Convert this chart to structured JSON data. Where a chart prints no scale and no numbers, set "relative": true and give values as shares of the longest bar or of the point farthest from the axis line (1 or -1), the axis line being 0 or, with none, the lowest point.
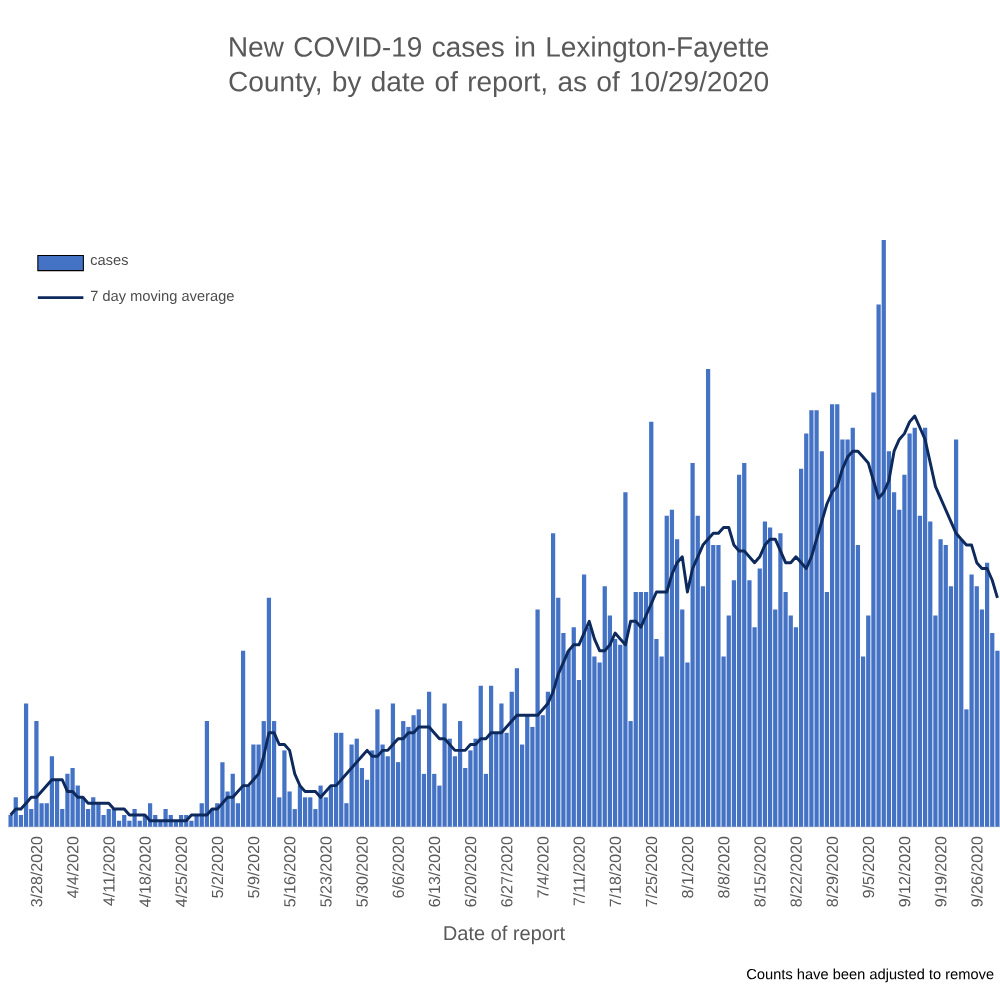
{
  "chart_data": {
    "type": "bar",
    "title": "New COVID-19 cases in Lexington-Fayette County, by date of report, as of 10/29/2020",
    "xlabel": "Date of report",
    "annotations": [
      "Counts have been adjusted to remove"
    ],
    "relative": true,
    "legend": "top left",
    "categories": [
      null,
      null,
      null,
      null,
      null,
      "3/28/2020",
      null,
      null,
      null,
      null,
      null,
      null,
      "4/4/2020",
      null,
      null,
      null,
      null,
      null,
      null,
      "4/11/2020",
      null,
      null,
      null,
      null,
      null,
      null,
      "4/18/2020",
      null,
      null,
      null,
      null,
      null,
      null,
      "4/25/2020",
      null,
      null,
      null,
      null,
      null,
      null,
      "5/2/2020",
      null,
      null,
      null,
      null,
      null,
      null,
      "5/9/2020",
      null,
      null,
      null,
      null,
      null,
      null,
      "5/16/2020",
      null,
      null,
      null,
      null,
      null,
      null,
      "5/23/2020",
      null,
      null,
      null,
      null,
      null,
      null,
      "5/30/2020",
      null,
      null,
      null,
      null,
      null,
      null,
      "6/6/2020",
      null,
      null,
      null,
      null,
      null,
      null,
      "6/13/2020",
      null,
      null,
      null,
      null,
      null,
      null,
      "6/20/2020",
      null,
      null,
      null,
      null,
      null,
      null,
      "6/27/2020",
      null,
      null,
      null,
      null,
      null,
      null,
      "7/4/2020",
      null,
      null,
      null,
      null,
      null,
      null,
      "7/11/2020",
      null,
      null,
      null,
      null,
      null,
      null,
      "7/18/2020",
      null,
      null,
      null,
      null,
      null,
      null,
      "7/25/2020",
      null,
      null,
      null,
      null,
      null,
      null,
      "8/1/2020",
      null,
      null,
      null,
      null,
      null,
      null,
      "8/8/2020",
      null,
      null,
      null,
      null,
      null,
      null,
      "8/15/2020",
      null,
      null,
      null,
      null,
      null,
      null,
      "8/22/2020",
      null,
      null,
      null,
      null,
      null,
      null,
      "8/29/2020",
      null,
      null,
      null,
      null,
      null,
      null,
      "9/5/2020",
      null,
      null,
      null,
      null,
      null,
      null,
      "9/12/2020",
      null,
      null,
      null,
      null,
      null,
      null,
      "9/19/2020",
      null,
      null,
      null,
      null,
      null,
      null,
      "9/26/2020",
      null,
      null,
      null,
      null
    ],
    "series": [
      {
        "name": "cases",
        "color": "#4472c4",
        "values": [
          0.02,
          0.05,
          0.02,
          0.21,
          0.03,
          0.18,
          0.04,
          0.04,
          0.12,
          0.08,
          0.03,
          0.09,
          0.1,
          0.07,
          0.05,
          0.03,
          0.05,
          0.04,
          0.02,
          0.03,
          0.03,
          0.01,
          0.02,
          0.01,
          0.03,
          0.01,
          0.02,
          0.04,
          0.02,
          0.01,
          0.03,
          0.02,
          0.01,
          0.02,
          0.02,
          0.01,
          0.02,
          0.04,
          0.18,
          0.03,
          0.04,
          0.11,
          0.06,
          0.09,
          0.04,
          0.3,
          0.07,
          0.14,
          0.14,
          0.18,
          0.39,
          0.18,
          0.05,
          0.13,
          0.06,
          0.03,
          0.07,
          0.05,
          0.05,
          0.03,
          0.07,
          0.05,
          0.07,
          0.16,
          0.16,
          0.04,
          0.14,
          0.15,
          0.1,
          0.08,
          0.13,
          0.2,
          0.14,
          0.12,
          0.21,
          0.11,
          0.18,
          0.17,
          0.19,
          0.2,
          0.09,
          0.23,
          0.09,
          0.07,
          0.21,
          0.15,
          0.12,
          0.18,
          0.1,
          0.13,
          0.15,
          0.24,
          0.09,
          0.24,
          0.16,
          0.21,
          0.16,
          0.23,
          0.27,
          0.14,
          0.19,
          0.17,
          0.37,
          0.19,
          0.23,
          0.5,
          0.39,
          0.33,
          0.3,
          0.34,
          0.25,
          0.43,
          0.34,
          0.29,
          0.28,
          0.41,
          0.36,
          0.32,
          0.31,
          0.57,
          0.18,
          0.4,
          0.4,
          0.4,
          0.69,
          0.32,
          0.29,
          0.53,
          0.54,
          0.49,
          0.37,
          0.28,
          0.62,
          0.53,
          0.41,
          0.78,
          0.48,
          0.48,
          0.29,
          0.36,
          0.42,
          0.6,
          0.62,
          0.42,
          0.34,
          0.44,
          0.52,
          0.51,
          0.37,
          0.5,
          0.4,
          0.36,
          0.34,
          0.61,
          0.67,
          0.71,
          0.71,
          0.64,
          0.4,
          0.72,
          0.72,
          0.66,
          0.66,
          0.68,
          0.48,
          0.29,
          0.36,
          0.74,
          0.89,
          1.0,
          0.64,
          0.57,
          0.54,
          0.6,
          0.67,
          0.68,
          0.53,
          0.68,
          0.52,
          0.36,
          0.49,
          0.48,
          0.41,
          0.66,
          0.49,
          0.2,
          0.43,
          0.41,
          0.37,
          0.45,
          0.33,
          0.3
        ]
      },
      {
        "name": "7 day moving average",
        "type": "line",
        "color": "#0e2a5c",
        "values": [
          0.02,
          0.03,
          0.03,
          0.04,
          0.05,
          0.05,
          0.06,
          0.07,
          0.08,
          0.08,
          0.08,
          0.06,
          0.06,
          0.05,
          0.05,
          0.04,
          0.04,
          0.04,
          0.04,
          0.04,
          0.03,
          0.03,
          0.03,
          0.02,
          0.02,
          0.02,
          0.02,
          0.01,
          0.01,
          0.01,
          0.01,
          0.01,
          0.01,
          0.01,
          0.01,
          0.02,
          0.02,
          0.02,
          0.02,
          0.03,
          0.03,
          0.04,
          0.05,
          0.05,
          0.06,
          0.07,
          0.07,
          0.08,
          0.09,
          0.12,
          0.16,
          0.16,
          0.14,
          0.14,
          0.13,
          0.09,
          0.07,
          0.06,
          0.06,
          0.06,
          0.05,
          0.06,
          0.07,
          0.07,
          0.08,
          0.09,
          0.1,
          0.11,
          0.12,
          0.13,
          0.12,
          0.12,
          0.13,
          0.13,
          0.14,
          0.15,
          0.15,
          0.16,
          0.16,
          0.17,
          0.17,
          0.17,
          0.16,
          0.15,
          0.15,
          0.14,
          0.13,
          0.13,
          0.13,
          0.14,
          0.14,
          0.15,
          0.15,
          0.16,
          0.16,
          0.16,
          0.17,
          0.18,
          0.19,
          0.19,
          0.19,
          0.19,
          0.19,
          0.2,
          0.21,
          0.23,
          0.26,
          0.28,
          0.3,
          0.31,
          0.31,
          0.33,
          0.35,
          0.32,
          0.3,
          0.3,
          0.31,
          0.33,
          0.32,
          0.31,
          0.35,
          0.35,
          0.34,
          0.36,
          0.38,
          0.4,
          0.4,
          0.4,
          0.43,
          0.45,
          0.46,
          0.4,
          0.44,
          0.46,
          0.48,
          0.49,
          0.5,
          0.5,
          0.51,
          0.51,
          0.48,
          0.47,
          0.47,
          0.46,
          0.45,
          0.46,
          0.48,
          0.49,
          0.49,
          0.47,
          0.45,
          0.45,
          0.46,
          0.45,
          0.44,
          0.46,
          0.49,
          0.52,
          0.55,
          0.57,
          0.58,
          0.61,
          0.63,
          0.64,
          0.64,
          0.63,
          0.62,
          0.59,
          0.56,
          0.57,
          0.59,
          0.64,
          0.66,
          0.67,
          0.69,
          0.7,
          0.68,
          0.66,
          0.62,
          0.58,
          0.56,
          0.54,
          0.52,
          0.5,
          0.49,
          0.48,
          0.48,
          0.45,
          0.44,
          0.44,
          0.42,
          0.39
        ]
      }
    ]
  }
}
